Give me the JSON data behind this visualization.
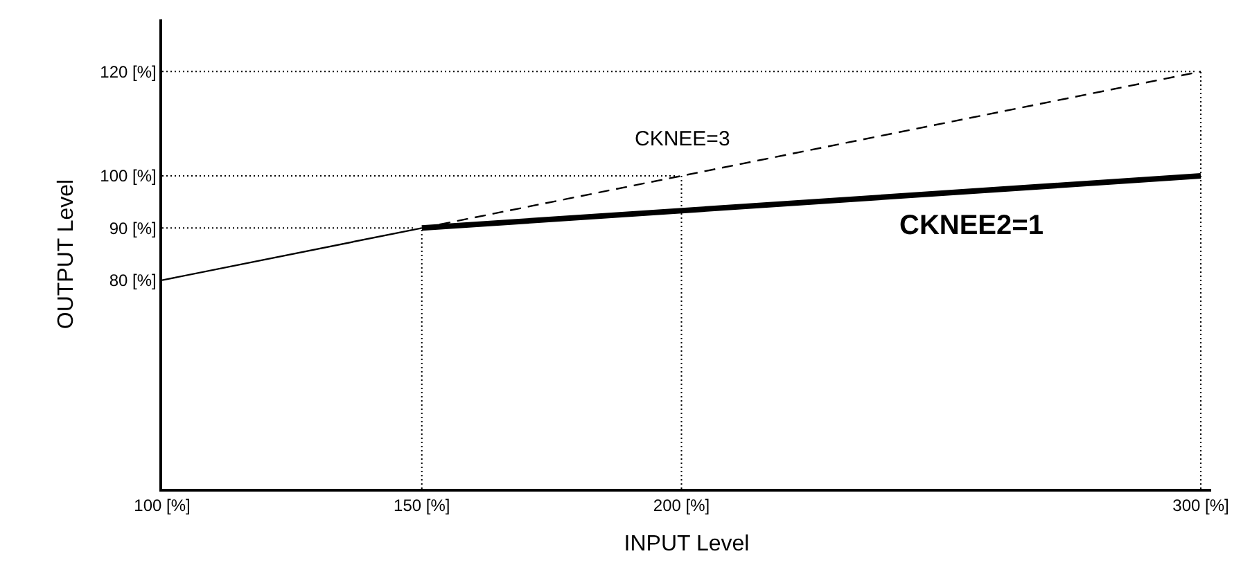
{
  "chart_data": {
    "type": "line",
    "xlabel": "INPUT Level",
    "ylabel": "OUTPUT Level",
    "series": [
      {
        "color": "#000000",
        "x": [
          100,
          150
        ],
        "values": [
          80,
          90
        ],
        "line_style": "solid"
      },
      {
        "name": "CKNEE=3",
        "color": "#000000",
        "x": [
          150,
          300
        ],
        "values": [
          90,
          120
        ],
        "line_style": "dashed"
      },
      {
        "name": "CKNEE2=1",
        "color": "#000000",
        "x": [
          150,
          300
        ],
        "values": [
          90,
          100
        ],
        "line_style": "solid"
      }
    ],
    "xlim": [
      100,
      302
    ],
    "ylim": [
      40,
      130
    ],
    "xticks": [
      {
        "value": 100,
        "label": "100 [%]"
      },
      {
        "value": 150,
        "label": "150 [%]"
      },
      {
        "value": 200,
        "label": "200 [%]"
      },
      {
        "value": 300,
        "label": "300 [%]"
      }
    ],
    "yticks": [
      {
        "value": 80,
        "label": "80 [%]"
      },
      {
        "value": 90,
        "label": "90 [%]"
      },
      {
        "value": 100,
        "label": "100 [%]"
      },
      {
        "value": 120,
        "label": "120 [%]"
      }
    ],
    "ref_lines": [
      {
        "axis": "x",
        "value": 150,
        "line_style": "dotted",
        "color": "#000000"
      },
      {
        "axis": "x",
        "value": 200,
        "line_style": "dotted",
        "color": "#000000"
      },
      {
        "axis": "x",
        "value": 300,
        "line_style": "dotted",
        "color": "#000000"
      },
      {
        "axis": "y",
        "value": 90,
        "line_style": "dotted",
        "color": "#000000"
      },
      {
        "axis": "y",
        "value": 100,
        "line_style": "dotted",
        "color": "#000000"
      },
      {
        "axis": "y",
        "value": 120,
        "line_style": "dotted",
        "color": "#000000"
      }
    ],
    "legend": false
  }
}
